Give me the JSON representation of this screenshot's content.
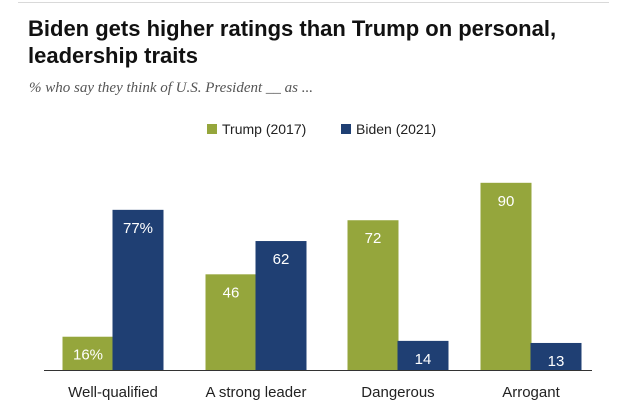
{
  "header": {
    "title": "Biden gets higher ratings than Trump on personal, leadership traits",
    "subtitle": "% who say they think of U.S. President __ as ..."
  },
  "colors": {
    "trump": "#95a63c",
    "biden": "#1f3f73",
    "trump_label": "#ffffff",
    "biden_label": "#ffffff",
    "baseline": "#333333"
  },
  "chart_data": {
    "type": "bar",
    "title": "Biden gets higher ratings than Trump on personal, leadership traits",
    "subtitle": "% who say they think of U.S. President __ as ...",
    "categories": [
      "Well-qualified",
      "A strong leader",
      "Dangerous",
      "Arrogant"
    ],
    "series": [
      {
        "name": "Trump (2017)",
        "values": [
          16,
          46,
          72,
          90
        ],
        "labels": [
          "16%",
          "46",
          "72",
          "90"
        ]
      },
      {
        "name": "Biden (2021)",
        "values": [
          77,
          62,
          14,
          13
        ],
        "labels": [
          "77%",
          "62",
          "14",
          "13"
        ]
      }
    ],
    "ylim": [
      0,
      100
    ],
    "grid": false,
    "legend": "top-center"
  }
}
